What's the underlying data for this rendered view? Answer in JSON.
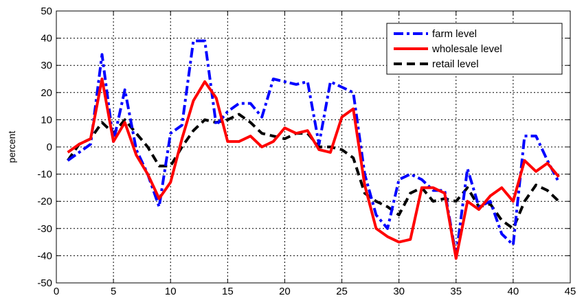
{
  "chart_data": {
    "type": "line",
    "title": "",
    "xlabel": "",
    "ylabel": "percent",
    "xlim": [
      0,
      45
    ],
    "ylim": [
      -50,
      50
    ],
    "xticks": [
      0,
      5,
      10,
      15,
      20,
      25,
      30,
      35,
      40,
      45
    ],
    "yticks": [
      -50,
      -40,
      -30,
      -20,
      -10,
      0,
      10,
      20,
      30,
      40,
      50
    ],
    "grid": true,
    "legend_position": "top-right",
    "x": [
      1,
      2,
      3,
      4,
      5,
      6,
      7,
      8,
      9,
      10,
      11,
      12,
      13,
      14,
      15,
      16,
      17,
      18,
      19,
      20,
      21,
      22,
      23,
      24,
      25,
      26,
      27,
      28,
      29,
      30,
      31,
      32,
      33,
      34,
      35,
      36,
      37,
      38,
      39,
      40,
      41,
      42,
      43,
      44
    ],
    "series": [
      {
        "name": "farm level",
        "color": "#0000ff",
        "dash": "dashdot",
        "values": [
          -5,
          -2,
          1,
          34,
          2,
          21,
          -1,
          -10,
          -22,
          5,
          8,
          39,
          39,
          8,
          13,
          16,
          16,
          11,
          25,
          24,
          23,
          24,
          1,
          24,
          22,
          20,
          -10,
          -25,
          -30,
          -12,
          -10,
          -12,
          -16,
          -16,
          -40,
          -8,
          -22,
          -20,
          -32,
          -36,
          4,
          4,
          -5,
          -13
        ]
      },
      {
        "name": "wholesale level",
        "color": "#ff0000",
        "dash": "solid",
        "values": [
          -2,
          1,
          3,
          25,
          2,
          9,
          -3,
          -10,
          -19,
          -13,
          3,
          17,
          24,
          18,
          2,
          2,
          4,
          0,
          2,
          7,
          5,
          6,
          -1,
          -2,
          11,
          14,
          -14,
          -30,
          -33,
          -35,
          -34,
          -15,
          -15,
          -17,
          -41,
          -20,
          -23,
          -18,
          -15,
          -20,
          -5,
          -9,
          -6,
          -11
        ]
      },
      {
        "name": "retail level",
        "color": "#000000",
        "dash": "dashed",
        "values": [
          -5,
          1,
          3,
          9,
          5,
          10,
          5,
          0,
          -7,
          -7,
          0,
          6,
          10,
          9,
          10,
          12,
          9,
          5,
          4,
          3,
          5,
          5,
          0,
          0,
          -1,
          -4,
          -17,
          -20,
          -22,
          -25,
          -17,
          -15,
          -20,
          -19,
          -20,
          -15,
          -22,
          -21,
          -27,
          -30,
          -20,
          -14,
          -16,
          -20
        ]
      }
    ]
  }
}
